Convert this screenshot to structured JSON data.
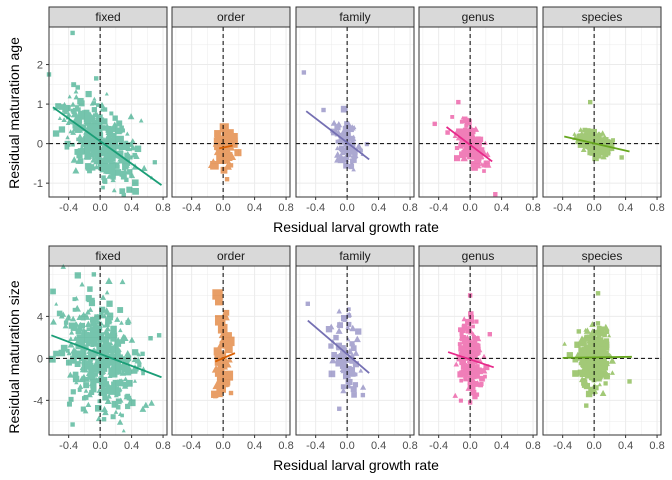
{
  "chart_data": [
    {
      "type": "scatter",
      "row": "top",
      "xlabel": "Residual larval growth rate",
      "ylabel": "Residual maturation age",
      "xlim": [
        -0.65,
        0.85
      ],
      "ylim": [
        -1.35,
        2.95
      ],
      "x_ticks": [
        -0.4,
        0.0,
        0.4,
        0.8
      ],
      "x_tick_labels": [
        "-0.4",
        "0.0",
        "0.4",
        "0.8"
      ],
      "y_ticks": [
        -1,
        0,
        1,
        2
      ],
      "y_tick_labels": [
        "-1",
        "0",
        "1",
        "2"
      ],
      "grid": true,
      "reference_lines": {
        "x": 0,
        "y": 0,
        "style": "dashed"
      },
      "panels": [
        {
          "label": "fixed",
          "color": "#1b9e77",
          "x_spread": 0.22,
          "y_spread": 0.42,
          "n_points": 420,
          "seed": 11,
          "trend": {
            "x": [
              -0.6,
              0.78
            ],
            "y": [
              0.92,
              -1.05
            ]
          },
          "outliers": [
            [
              -0.35,
              2.8
            ],
            [
              -0.65,
              1.75
            ],
            [
              -0.05,
              1.65
            ],
            [
              0.3,
              -1.3
            ]
          ]
        },
        {
          "label": "order",
          "color": "#d95f02",
          "x_spread": 0.06,
          "y_spread": 0.22,
          "n_points": 45,
          "seed": 22,
          "trend": {
            "x": [
              -0.05,
              0.12
            ],
            "y": [
              -0.12,
              -0.05
            ]
          },
          "outliers": [
            [
              0.05,
              -0.9
            ],
            [
              0.1,
              -0.55
            ]
          ]
        },
        {
          "label": "family",
          "color": "#7570b3",
          "x_spread": 0.09,
          "y_spread": 0.3,
          "n_points": 85,
          "seed": 33,
          "trend": {
            "x": [
              -0.52,
              0.28
            ],
            "y": [
              0.82,
              -0.4
            ]
          },
          "outliers": [
            [
              -0.55,
              1.8
            ],
            [
              -0.3,
              0.85
            ]
          ]
        },
        {
          "label": "genus",
          "color": "#e7298a",
          "x_spread": 0.09,
          "y_spread": 0.25,
          "n_points": 140,
          "seed": 44,
          "trend": {
            "x": [
              -0.3,
              0.28
            ],
            "y": [
              0.42,
              -0.45
            ]
          },
          "outliers": [
            [
              -0.15,
              1.05
            ],
            [
              -0.45,
              0.5
            ],
            [
              0.32,
              -1.28
            ]
          ]
        },
        {
          "label": "species",
          "color": "#66a61e",
          "x_spread": 0.1,
          "y_spread": 0.12,
          "n_points": 320,
          "seed": 55,
          "trend": {
            "x": [
              -0.38,
              0.45
            ],
            "y": [
              0.18,
              -0.2
            ]
          },
          "outliers": [
            [
              -0.05,
              1.05
            ],
            [
              0.35,
              -0.35
            ]
          ]
        }
      ]
    },
    {
      "type": "scatter",
      "row": "bottom",
      "xlabel": "Residual larval growth rate",
      "ylabel": "Residual maturation size",
      "xlim": [
        -0.65,
        0.85
      ],
      "ylim": [
        -7.3,
        8.8
      ],
      "x_ticks": [
        -0.4,
        0.0,
        0.4,
        0.8
      ],
      "x_tick_labels": [
        "-0.4",
        "0.0",
        "0.4",
        "0.8"
      ],
      "y_ticks": [
        -4,
        0,
        4
      ],
      "y_tick_labels": [
        "-4",
        "0",
        "4"
      ],
      "grid": true,
      "reference_lines": {
        "x": 0,
        "y": 0,
        "style": "dashed"
      },
      "panels": [
        {
          "label": "fixed",
          "color": "#1b9e77",
          "x_spread": 0.22,
          "y_spread": 2.3,
          "n_points": 480,
          "seed": 66,
          "trend": {
            "x": [
              -0.62,
              0.78
            ],
            "y": [
              2.2,
              -1.8
            ]
          },
          "outliers": [
            [
              -0.08,
              8.0
            ],
            [
              0.75,
              2.2
            ],
            [
              -0.35,
              -6.3
            ],
            [
              0.05,
              -5.8
            ]
          ]
        },
        {
          "label": "order",
          "color": "#d95f02",
          "x_spread": 0.05,
          "y_spread": 2.2,
          "n_points": 45,
          "seed": 77,
          "trend": {
            "x": [
              -0.1,
              0.15
            ],
            "y": [
              -0.3,
              0.5
            ]
          },
          "outliers": [
            [
              0.0,
              2.8
            ],
            [
              0.1,
              -3.3
            ],
            [
              -0.1,
              -3.6
            ]
          ]
        },
        {
          "label": "family",
          "color": "#7570b3",
          "x_spread": 0.09,
          "y_spread": 1.8,
          "n_points": 85,
          "seed": 88,
          "trend": {
            "x": [
              -0.5,
              0.28
            ],
            "y": [
              3.6,
              -1.4
            ]
          },
          "outliers": [
            [
              -0.5,
              5.2
            ],
            [
              -0.1,
              -4.8
            ],
            [
              0.2,
              -3.5
            ]
          ]
        },
        {
          "label": "genus",
          "color": "#e7298a",
          "x_spread": 0.08,
          "y_spread": 1.8,
          "n_points": 160,
          "seed": 99,
          "trend": {
            "x": [
              -0.28,
              0.3
            ],
            "y": [
              0.6,
              -0.85
            ]
          },
          "outliers": [
            [
              0.25,
              2.3
            ],
            [
              0.0,
              6.0
            ],
            [
              0.0,
              -4.2
            ]
          ]
        },
        {
          "label": "species",
          "color": "#66a61e",
          "x_spread": 0.09,
          "y_spread": 1.3,
          "n_points": 340,
          "seed": 111,
          "trend": {
            "x": [
              -0.4,
              0.48
            ],
            "y": [
              0.05,
              0.15
            ]
          },
          "outliers": [
            [
              0.05,
              6.2
            ],
            [
              -0.1,
              -4.5
            ],
            [
              0.45,
              -2.2
            ]
          ]
        }
      ]
    }
  ]
}
